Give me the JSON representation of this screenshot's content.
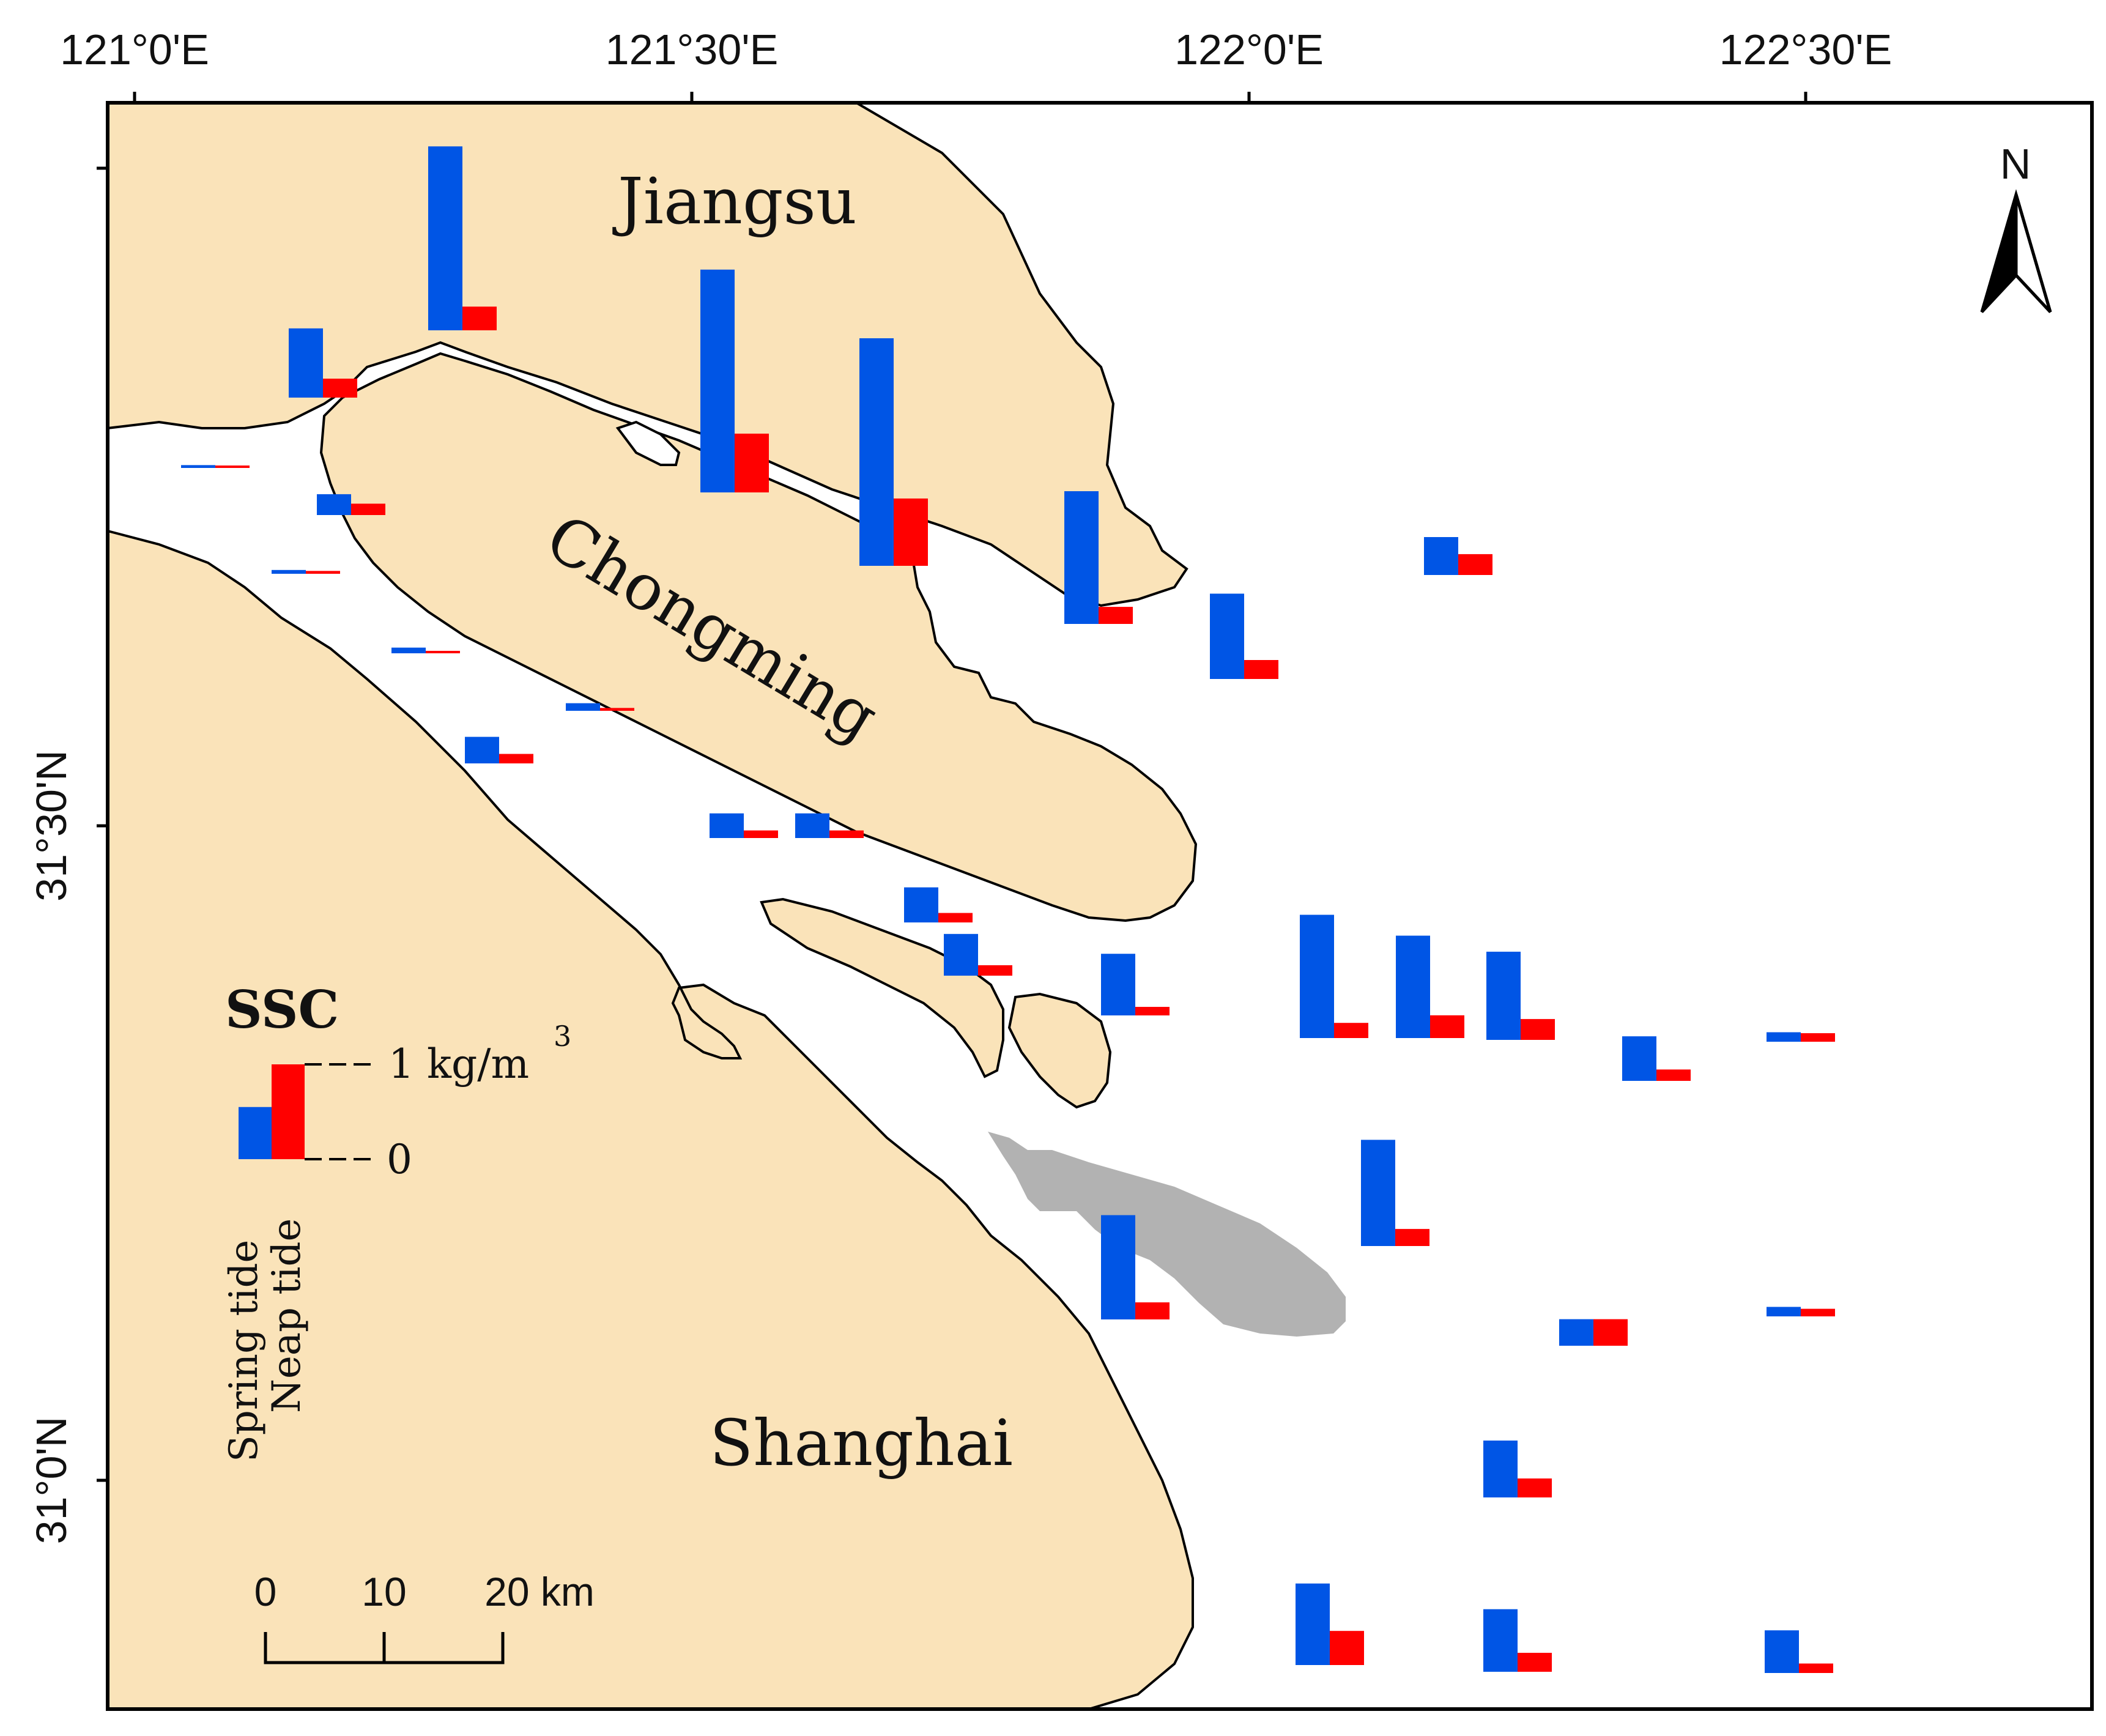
{
  "map": {
    "lon_ticks": [
      "121°0'E",
      "121°30'E",
      "122°0'E",
      "122°30'E"
    ],
    "lat_ticks": [
      "31°30'N",
      "31°0'N"
    ],
    "places": {
      "jiangsu": "Jiangsu",
      "chongming": "Chongming",
      "shanghai": "Shanghai"
    },
    "north_arrow": {
      "label": "N",
      "icon": "north-arrow-icon"
    },
    "legend": {
      "title": "SSC",
      "max_label": "1 kg/m",
      "max_label_sup": "3",
      "zero_label": "0",
      "spring_label": "Spring tide",
      "neap_label": "Neap tide",
      "sample_spring": 0.55,
      "sample_neap": 1.0
    },
    "scale_bar": {
      "labels": [
        "0",
        "10",
        "20 km"
      ]
    },
    "colors": {
      "land": "#FAE3B9",
      "water": "#FFFFFF",
      "shoal": "#B2B2B2",
      "spring": "#0055E5",
      "neap": "#FF0000",
      "outline": "#000000"
    },
    "stations": [
      {
        "id": "s1",
        "spring": 0.03,
        "neap": 0.02
      },
      {
        "id": "s2",
        "spring": 0.73,
        "neap": 0.2
      },
      {
        "id": "s3",
        "spring": 1.94,
        "neap": 0.25
      },
      {
        "id": "s4",
        "spring": 0.22,
        "neap": 0.12
      },
      {
        "id": "s5",
        "spring": 0.04,
        "neap": 0.03
      },
      {
        "id": "s6",
        "spring": 0.06,
        "neap": 0.02
      },
      {
        "id": "s7",
        "spring": 2.35,
        "neap": 0.62
      },
      {
        "id": "s8",
        "spring": 2.4,
        "neap": 0.71
      },
      {
        "id": "s9",
        "spring": 0.28,
        "neap": 0.1
      },
      {
        "id": "s10",
        "spring": 0.08,
        "neap": 0.03
      },
      {
        "id": "s11",
        "spring": 1.4,
        "neap": 0.18
      },
      {
        "id": "s12",
        "spring": 0.9,
        "neap": 0.2
      },
      {
        "id": "s13",
        "spring": 0.4,
        "neap": 0.22
      },
      {
        "id": "s14",
        "spring": 0.26,
        "neap": 0.08
      },
      {
        "id": "s15",
        "spring": 0.26,
        "neap": 0.08
      },
      {
        "id": "s16",
        "spring": 0.37,
        "neap": 0.1
      },
      {
        "id": "s17",
        "spring": 0.44,
        "neap": 0.11
      },
      {
        "id": "s18",
        "spring": 0.65,
        "neap": 0.09
      },
      {
        "id": "s19",
        "spring": 1.3,
        "neap": 0.16
      },
      {
        "id": "s20",
        "spring": 1.08,
        "neap": 0.24
      },
      {
        "id": "s21",
        "spring": 0.93,
        "neap": 0.22
      },
      {
        "id": "s22",
        "spring": 0.47,
        "neap": 0.12
      },
      {
        "id": "s23",
        "spring": 0.1,
        "neap": 0.09
      },
      {
        "id": "s24",
        "spring": 1.12,
        "neap": 0.18
      },
      {
        "id": "s25",
        "spring": 1.1,
        "neap": 0.18
      },
      {
        "id": "s26",
        "spring": 0.28,
        "neap": 0.28
      },
      {
        "id": "s27",
        "spring": 0.1,
        "neap": 0.08
      },
      {
        "id": "s28",
        "spring": 0.6,
        "neap": 0.2
      },
      {
        "id": "s29",
        "spring": 0.86,
        "neap": 0.36
      },
      {
        "id": "s30",
        "spring": 0.66,
        "neap": 0.2
      },
      {
        "id": "s31",
        "spring": 0.45,
        "neap": 0.1
      }
    ]
  }
}
